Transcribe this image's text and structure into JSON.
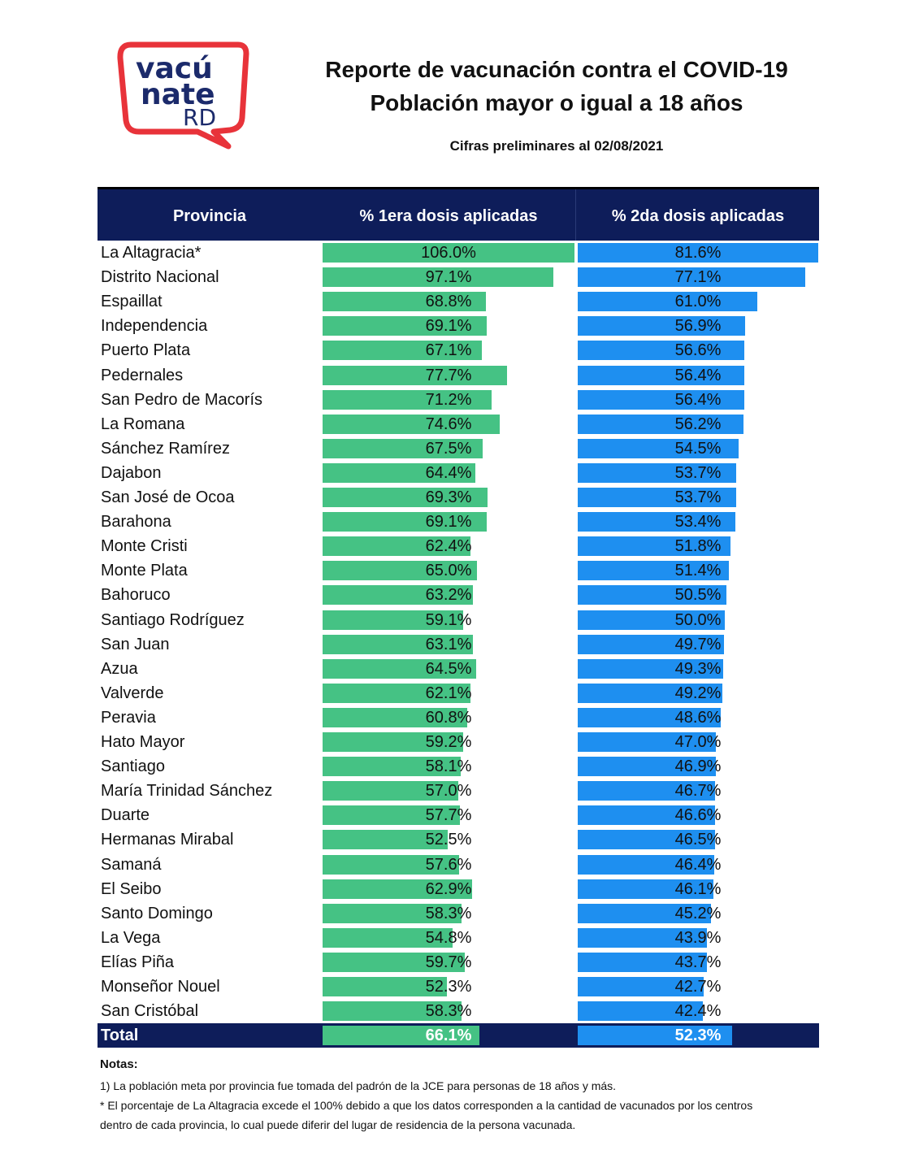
{
  "logo": {
    "line1": "vacú",
    "line2": "nate",
    "line3": "RD"
  },
  "header": {
    "title_line1": "Reporte de vacunación contra el COVID-19",
    "title_line2": "Población mayor o igual a 18 años",
    "subtitle": "Cifras preliminares al  02/08/2021"
  },
  "colors": {
    "header_bg": "#0e1d5a",
    "dose1": "#45c284",
    "dose2": "#1e8ff0",
    "logo_red": "#e8333a",
    "logo_navy": "#1b2a6b"
  },
  "chart_data": {
    "type": "bar",
    "orientation": "horizontal",
    "columns": [
      "Provincia",
      "% 1era dosis aplicadas",
      "% 2da dosis aplicadas"
    ],
    "categories": [
      "La Altagracia*",
      "Distrito Nacional",
      "Espaillat",
      "Independencia",
      "Puerto Plata",
      "Pedernales",
      "San Pedro de Macorís",
      "La Romana",
      "Sánchez Ramírez",
      "Dajabon",
      "San José de Ocoa",
      "Barahona",
      "Monte Cristi",
      "Monte Plata",
      "Bahoruco",
      "Santiago Rodríguez",
      "San Juan",
      "Azua",
      "Valverde",
      "Peravia",
      "Hato Mayor",
      "Santiago",
      "María Trinidad Sánchez",
      "Duarte",
      "Hermanas Mirabal",
      "Samaná",
      "El Seibo",
      "Santo Domingo",
      "La Vega",
      "Elías Piña",
      "Monseñor Nouel",
      "San Cristóbal"
    ],
    "series": [
      {
        "name": "% 1era dosis aplicadas",
        "values": [
          106.0,
          97.1,
          68.8,
          69.1,
          67.1,
          77.7,
          71.2,
          74.6,
          67.5,
          64.4,
          69.3,
          69.1,
          62.4,
          65.0,
          63.2,
          59.1,
          63.1,
          64.5,
          62.1,
          60.8,
          59.2,
          58.1,
          57.0,
          57.7,
          52.5,
          57.6,
          62.9,
          58.3,
          54.8,
          59.7,
          52.3,
          58.3
        ]
      },
      {
        "name": "% 2da dosis aplicadas",
        "values": [
          81.6,
          77.1,
          61.0,
          56.9,
          56.6,
          56.4,
          56.4,
          56.2,
          54.5,
          53.7,
          53.7,
          53.4,
          51.8,
          51.4,
          50.5,
          50.0,
          49.7,
          49.3,
          49.2,
          48.6,
          47.0,
          46.9,
          46.7,
          46.6,
          46.5,
          46.4,
          46.1,
          45.2,
          43.9,
          43.7,
          42.7,
          42.4
        ]
      }
    ],
    "labels1": [
      "106.0%",
      "97.1%",
      "68.8%",
      "69.1%",
      "67.1%",
      "77.7%",
      "71.2%",
      "74.6%",
      "67.5%",
      "64.4%",
      "69.3%",
      "69.1%",
      "62.4%",
      "65.0%",
      "63.2%",
      "59.1%",
      "63.1%",
      "64.5%",
      "62.1%",
      "60.8%",
      "59.2%",
      "58.1%",
      "57.0%",
      "57.7%",
      "52.5%",
      "57.6%",
      "62.9%",
      "58.3%",
      "54.8%",
      "59.7%",
      "52.3%",
      "58.3%"
    ],
    "labels2": [
      "81.6%",
      "77.1%",
      "61.0%",
      "56.9%",
      "56.6%",
      "56.4%",
      "56.4%",
      "56.2%",
      "54.5%",
      "53.7%",
      "53.7%",
      "53.4%",
      "51.8%",
      "51.4%",
      "50.5%",
      "50.0%",
      "49.7%",
      "49.3%",
      "49.2%",
      "48.6%",
      "47.0%",
      "46.9%",
      "46.7%",
      "46.6%",
      "46.5%",
      "46.4%",
      "46.1%",
      "45.2%",
      "43.9%",
      "43.7%",
      "42.7%",
      "42.4%"
    ],
    "total": {
      "label": "Total",
      "dose1": 66.1,
      "dose2": 52.3,
      "dose1_text": "66.1%",
      "dose2_text": "52.3%"
    },
    "xlim1": [
      0,
      106.0
    ],
    "xlim2": [
      0,
      81.6
    ]
  },
  "notes": {
    "title": "Notas:",
    "note1": "1) La población meta por provincia fue tomada del padrón de la JCE para personas de 18 años y más.",
    "note2_line1": "* El porcentaje de La Altagracia excede el 100% debido a que los datos corresponden a la cantidad de vacunados por los centros",
    "note2_line2": "dentro de cada provincia, lo cual puede diferir del lugar de residencia de la persona vacunada."
  }
}
